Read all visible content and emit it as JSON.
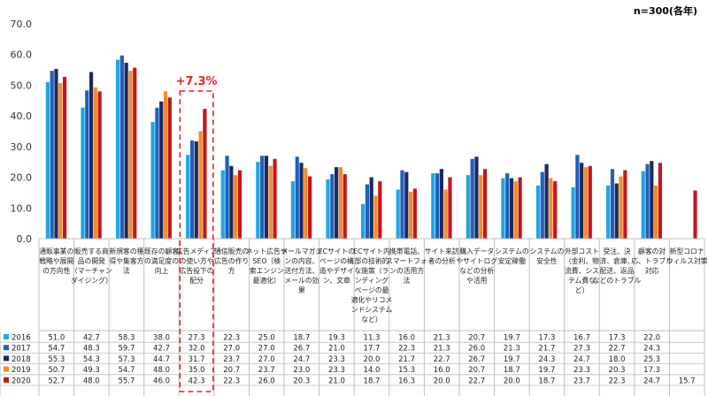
{
  "note": "n=300(各年)",
  "chart_data": {
    "type": "bar",
    "ylim": [
      0,
      70
    ],
    "yticks": [
      "0.0",
      "10.0",
      "20.0",
      "30.0",
      "40.0",
      "50.0",
      "60.0",
      "70.0"
    ],
    "grid": false,
    "categories": [
      "通販事業の戦略や展開の方向性",
      "販売する商品の開発（マーチャンダイジング）",
      "新規客の獲得や集客方法",
      "既存の顧客の満足度の向上",
      "広告メディアの使い方や広告投下の配分",
      "通信販売の広告の作り方",
      "ネット広告やSEO（検索エンジン最適化）",
      "メールマガジンの内容、送付方法、メールの効果",
      "ECサイトのページの構造やデザイン、文章",
      "ECサイト内部の技術的な施策（ランディングページの最適化やリコメンドシステムなど）",
      "携帯電話、スマートフォンの活用方法",
      "サイト来訪者の分析",
      "購入データやサイトログなどの分析や活用",
      "システムの安定稼働",
      "システムの安全性",
      "外部コスト（金利、物流費、システム費など）",
      "受注、決済、倉庫、配送、返品などのトラブル",
      "顧客の対応、トラブル対応",
      "新型コロナウィルス対策"
    ],
    "category_lines": [
      [
        "通販事業の",
        "戦略や展開",
        "の方向性"
      ],
      [
        "販売する商",
        "品の開発",
        "（マーチャン",
        "ダイジング）"
      ],
      [
        "新規客の獲",
        "得や集客方",
        "法"
      ],
      [
        "既存の顧客",
        "の満足度の",
        "向上"
      ],
      [
        "広告メディア",
        "の使い方や",
        "広告投下の",
        "配分"
      ],
      [
        "通信販売の",
        "広告の作り",
        "方"
      ],
      [
        "ネット広告や",
        "SEO（検",
        "索エンジン",
        "最適化）"
      ],
      [
        "メールマガジ",
        "ンの内容、",
        "送付方法、",
        "メールの効",
        "果"
      ],
      [
        "ECサイトの",
        "ページの構",
        "造やデザイ",
        "ン、文章"
      ],
      [
        "ECサイト内",
        "部の技術的",
        "な施策（ラ",
        "ンディング",
        "ページの最",
        "適化やリコメ",
        "ンドシステム",
        "など）"
      ],
      [
        "携帯電話、",
        "スマートフォ",
        "ンの活用方",
        "法"
      ],
      [
        "サイト来訪",
        "者の分析"
      ],
      [
        "購入データ",
        "やサイトログ",
        "などの分析",
        "や活用"
      ],
      [
        "システムの",
        "安定稼働"
      ],
      [
        "システムの",
        "安全性"
      ],
      [
        "外部コスト",
        "（金利、物",
        "流費、シス",
        "テム費な",
        "ど）"
      ],
      [
        "受注、決",
        "済、倉庫、",
        "配送、返品",
        "などのトラブル"
      ],
      [
        "顧客の対",
        "応、トラブル",
        "対応"
      ],
      [
        "新型コロナ",
        "ウィルス対策"
      ]
    ],
    "series": [
      {
        "name": "2016",
        "color": "#1ea7e1",
        "values": [
          51.0,
          42.7,
          58.3,
          38.0,
          27.3,
          22.3,
          25.0,
          18.7,
          19.3,
          11.3,
          16.0,
          21.3,
          20.7,
          19.7,
          17.3,
          16.7,
          17.3,
          22.0,
          null
        ]
      },
      {
        "name": "2017",
        "color": "#1f5fbf",
        "values": [
          54.7,
          48.3,
          59.7,
          42.7,
          32.0,
          27.0,
          27.0,
          26.7,
          21.0,
          17.7,
          22.3,
          21.3,
          26.0,
          21.3,
          21.7,
          27.3,
          22.7,
          24.3,
          null
        ]
      },
      {
        "name": "2018",
        "color": "#1b2a5c",
        "values": [
          55.3,
          54.3,
          57.3,
          44.7,
          31.7,
          23.7,
          27.0,
          24.7,
          23.3,
          20.0,
          21.7,
          22.7,
          26.7,
          19.7,
          24.3,
          24.7,
          18.0,
          25.3,
          null
        ]
      },
      {
        "name": "2019",
        "color": "#f58a2b",
        "values": [
          50.7,
          49.3,
          54.7,
          48.0,
          35.0,
          20.7,
          23.7,
          23.0,
          23.3,
          14.0,
          15.3,
          16.0,
          20.7,
          18.7,
          19.7,
          23.3,
          20.3,
          17.3,
          null
        ]
      },
      {
        "name": "2020",
        "color": "#c3161c",
        "values": [
          52.7,
          48.0,
          55.7,
          46.0,
          42.3,
          22.3,
          26.0,
          20.3,
          21.0,
          18.7,
          16.3,
          20.0,
          22.7,
          20.0,
          18.7,
          23.7,
          22.3,
          24.7,
          15.7
        ]
      }
    ],
    "annotation": {
      "text": "+7.3%",
      "category_index": 4,
      "color": "#e8202a"
    }
  }
}
